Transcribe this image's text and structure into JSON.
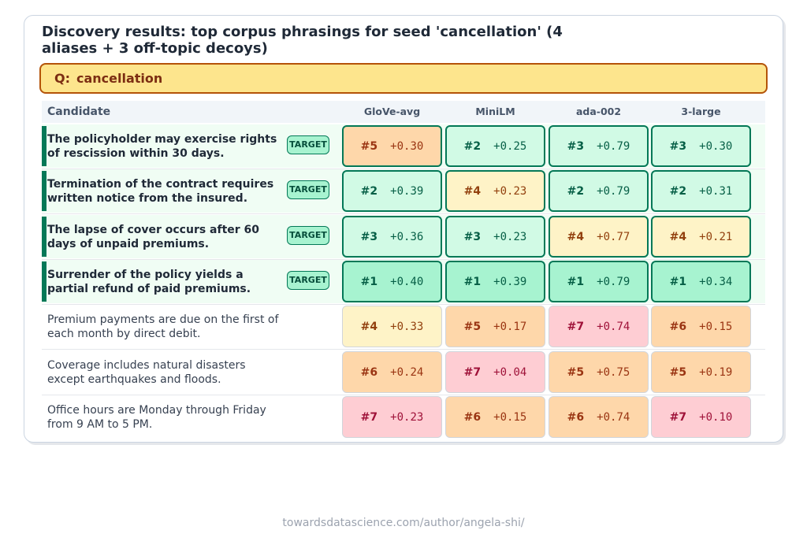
{
  "chart_data": {
    "type": "table",
    "title": "Discovery results: top corpus phrasings for seed 'cancellation' (4 aliases + 3 off-topic decoys)",
    "query_prefix": "Q:",
    "query": "cancellation",
    "candidate_header": "Candidate",
    "models": [
      "GloVe-avg",
      "MiniLM",
      "ada-002",
      "3-large"
    ],
    "target_label": "TARGET",
    "rows": [
      {
        "text": "The policyholder may exercise rights of rescission within 30 days.",
        "target": true,
        "cells": [
          {
            "rank": "#5",
            "score": "+0.30",
            "tone": "low"
          },
          {
            "rank": "#2",
            "score": "+0.25",
            "tone": "good"
          },
          {
            "rank": "#3",
            "score": "+0.79",
            "tone": "good"
          },
          {
            "rank": "#3",
            "score": "+0.30",
            "tone": "good"
          }
        ]
      },
      {
        "text": "Termination of the contract requires written notice from the insured.",
        "target": true,
        "cells": [
          {
            "rank": "#2",
            "score": "+0.39",
            "tone": "good"
          },
          {
            "rank": "#4",
            "score": "+0.23",
            "tone": "mid"
          },
          {
            "rank": "#2",
            "score": "+0.79",
            "tone": "good"
          },
          {
            "rank": "#2",
            "score": "+0.31",
            "tone": "good"
          }
        ]
      },
      {
        "text": "The lapse of cover occurs after 60 days of unpaid premiums.",
        "target": true,
        "cells": [
          {
            "rank": "#3",
            "score": "+0.36",
            "tone": "good"
          },
          {
            "rank": "#3",
            "score": "+0.23",
            "tone": "good"
          },
          {
            "rank": "#4",
            "score": "+0.77",
            "tone": "mid"
          },
          {
            "rank": "#4",
            "score": "+0.21",
            "tone": "mid"
          }
        ]
      },
      {
        "text": "Surrender of the policy yields a partial refund of paid premiums.",
        "target": true,
        "cells": [
          {
            "rank": "#1",
            "score": "+0.40",
            "tone": "best"
          },
          {
            "rank": "#1",
            "score": "+0.39",
            "tone": "best"
          },
          {
            "rank": "#1",
            "score": "+0.79",
            "tone": "best"
          },
          {
            "rank": "#1",
            "score": "+0.34",
            "tone": "best"
          }
        ]
      },
      {
        "text": "Premium payments are due on the first of each month by direct debit.",
        "target": false,
        "cells": [
          {
            "rank": "#4",
            "score": "+0.33",
            "tone": "mid"
          },
          {
            "rank": "#5",
            "score": "+0.17",
            "tone": "low"
          },
          {
            "rank": "#7",
            "score": "+0.74",
            "tone": "bad"
          },
          {
            "rank": "#6",
            "score": "+0.15",
            "tone": "low"
          }
        ]
      },
      {
        "text": "Coverage includes natural disasters except earthquakes and floods.",
        "target": false,
        "cells": [
          {
            "rank": "#6",
            "score": "+0.24",
            "tone": "low"
          },
          {
            "rank": "#7",
            "score": "+0.04",
            "tone": "bad"
          },
          {
            "rank": "#5",
            "score": "+0.75",
            "tone": "low"
          },
          {
            "rank": "#5",
            "score": "+0.19",
            "tone": "low"
          }
        ]
      },
      {
        "text": "Office hours are Monday through Friday from 9 AM to 5 PM.",
        "target": false,
        "cells": [
          {
            "rank": "#7",
            "score": "+0.23",
            "tone": "bad"
          },
          {
            "rank": "#6",
            "score": "+0.15",
            "tone": "low"
          },
          {
            "rank": "#6",
            "score": "+0.74",
            "tone": "low"
          },
          {
            "rank": "#7",
            "score": "+0.10",
            "tone": "bad"
          }
        ]
      }
    ]
  },
  "footer": "towardsdatascience.com/author/angela-shi/"
}
